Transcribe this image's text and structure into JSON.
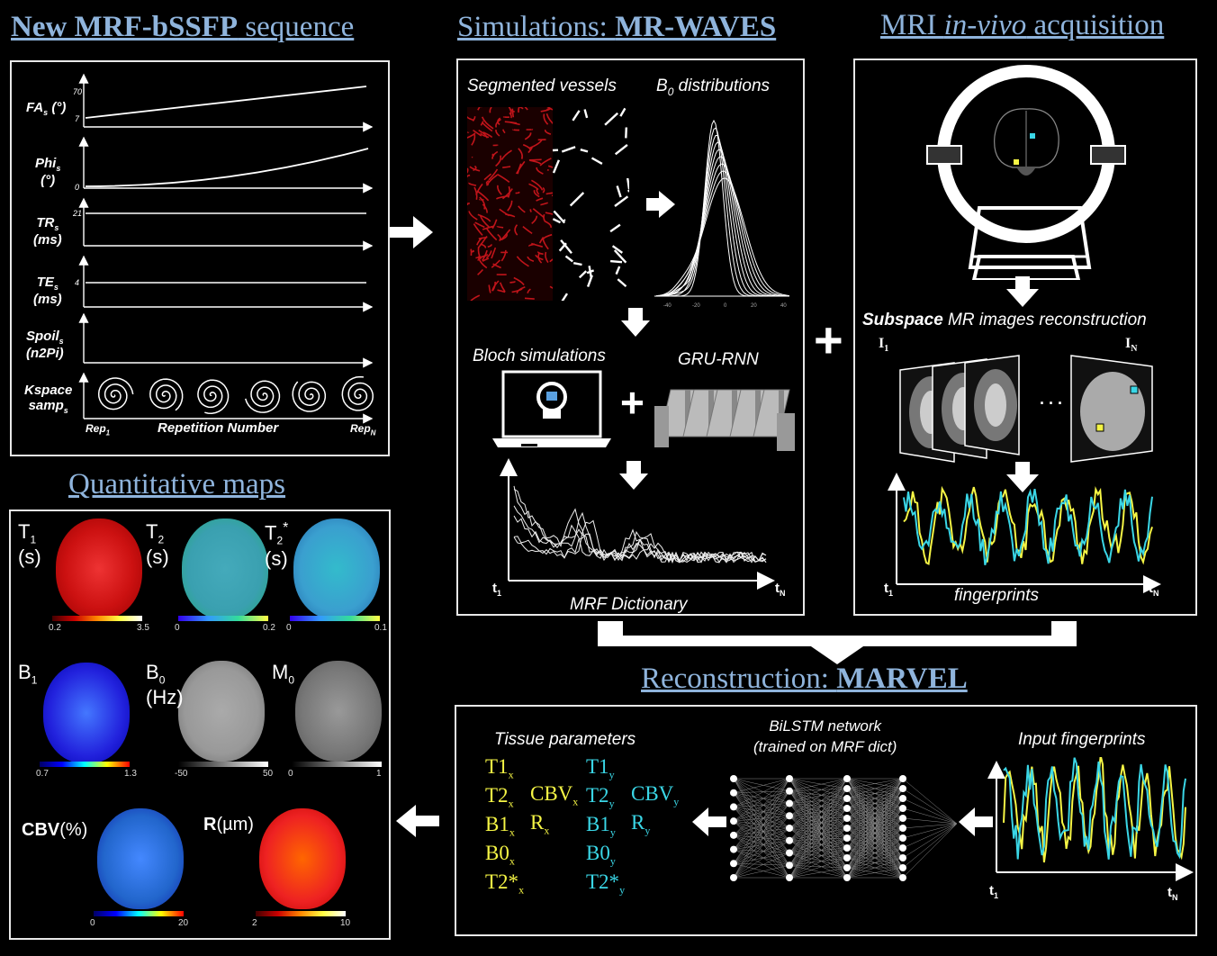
{
  "headers": {
    "mrf_sequence": {
      "bold": "New MRF-bSSFP",
      "rest": " sequence"
    },
    "simulations": {
      "plain": "Simulations: ",
      "bold": "MR-WAVES"
    },
    "mri_acq": {
      "pre": "MRI ",
      "italic": "in-vivo",
      "post": " acquisition"
    },
    "quant_maps": "Quantitative maps",
    "reconstruction": {
      "plain": "Reconstruction: ",
      "bold": "MARVEL"
    }
  },
  "sequence": {
    "rows": [
      {
        "label": "FA",
        "sub": "s",
        "unit": "(°)",
        "ticks": [
          "70",
          "7"
        ]
      },
      {
        "label": "Phi",
        "sub": "s",
        "unit": "(°)",
        "ticks": [
          "0"
        ]
      },
      {
        "label": "TR",
        "sub": "s",
        "unit": "(ms)",
        "ticks": [
          "21"
        ]
      },
      {
        "label": "TE",
        "sub": "s",
        "unit": "(ms)",
        "ticks": [
          "4"
        ]
      },
      {
        "label": "Spoil",
        "sub": "s",
        "unit": "(n2Pi)",
        "ticks": []
      },
      {
        "label": "Kspace",
        "sub": "",
        "unit": "samp",
        "unit_sub": "s",
        "ticks": []
      }
    ],
    "rep1": "Rep",
    "rep1_sub": "1",
    "repN": "Rep",
    "repN_sub": "N",
    "x_axis": "Repetition Number"
  },
  "simulations": {
    "segmented_vessels": "Segmented vessels",
    "b0_dist": "B",
    "b0_dist_sub": "0",
    "b0_dist_rest": " distributions",
    "b0_ticks": [
      "-40",
      "-20",
      "0",
      "20",
      "40"
    ],
    "bloch": "Bloch simulations",
    "gru": "GRU-RNN",
    "dictionary": "MRF Dictionary",
    "t1": "t",
    "t1_sub": "1",
    "tN": "t",
    "tN_sub": "N"
  },
  "acquisition": {
    "subspace_bold": "Subspace",
    "subspace_rest": " MR images reconstruction",
    "i1": "I",
    "i1_sub": "1",
    "iN": "I",
    "iN_sub": "N",
    "dots": ". . .",
    "fingerprints": "fingerprints",
    "t1": "t",
    "t1_sub": "1",
    "tN": "t",
    "tN_sub": "N"
  },
  "maps": [
    {
      "name": "T",
      "sub": "1",
      "unit": "(s)",
      "min": "0.2",
      "max": "3.5"
    },
    {
      "name": "T",
      "sub": "2",
      "unit": "(s)",
      "min": "0",
      "max": "0.2"
    },
    {
      "name": "T",
      "sub": "2",
      "sup": "*",
      "unit": "(s)",
      "min": "0",
      "max": "0.1"
    },
    {
      "name": "B",
      "sub": "1",
      "unit": "",
      "min": "0.7",
      "max": "1.3"
    },
    {
      "name": "B",
      "sub": "0",
      "unit": "(Hz)",
      "min": "-50",
      "max": "50"
    },
    {
      "name": "M",
      "sub": "0",
      "unit": "",
      "min": "0",
      "max": "1"
    },
    {
      "name": "CBV",
      "unit": "(%)",
      "min": "0",
      "max": "20"
    },
    {
      "name": "R",
      "unit": "(µm)",
      "min": "2",
      "max": "10"
    }
  ],
  "reconstruction": {
    "tissue_params": "Tissue parameters",
    "bilstm_1": "BiLSTM network",
    "bilstm_2": "(trained on MRF dict)",
    "input_fp": "Input fingerprints",
    "params_x": {
      "col1": [
        {
          "t": "T1",
          "s": "x"
        },
        {
          "t": "T2",
          "s": "x"
        },
        {
          "t": "B1",
          "s": "x"
        },
        {
          "t": "B0",
          "s": "x"
        },
        {
          "t": "T2*",
          "s": "x"
        }
      ],
      "col2": [
        {
          "t": "CBV",
          "s": "x"
        },
        {
          "t": "R",
          "s": "x"
        }
      ]
    },
    "params_y": {
      "col1": [
        {
          "t": "T1",
          "s": "y"
        },
        {
          "t": "T2",
          "s": "y"
        },
        {
          "t": "B1",
          "s": "y"
        },
        {
          "t": "B0",
          "s": "y"
        },
        {
          "t": "T2*",
          "s": "y"
        }
      ],
      "col2": [
        {
          "t": "CBV",
          "s": "y"
        },
        {
          "t": "R",
          "s": "y"
        }
      ]
    },
    "t1": "t",
    "t1_sub": "1",
    "tN": "t",
    "tN_sub": "N"
  },
  "colors": {
    "header": "#8fb4dc",
    "yellow": "#f5f545",
    "cyan": "#3ad6e6",
    "vessel_red": "#c0141a"
  }
}
